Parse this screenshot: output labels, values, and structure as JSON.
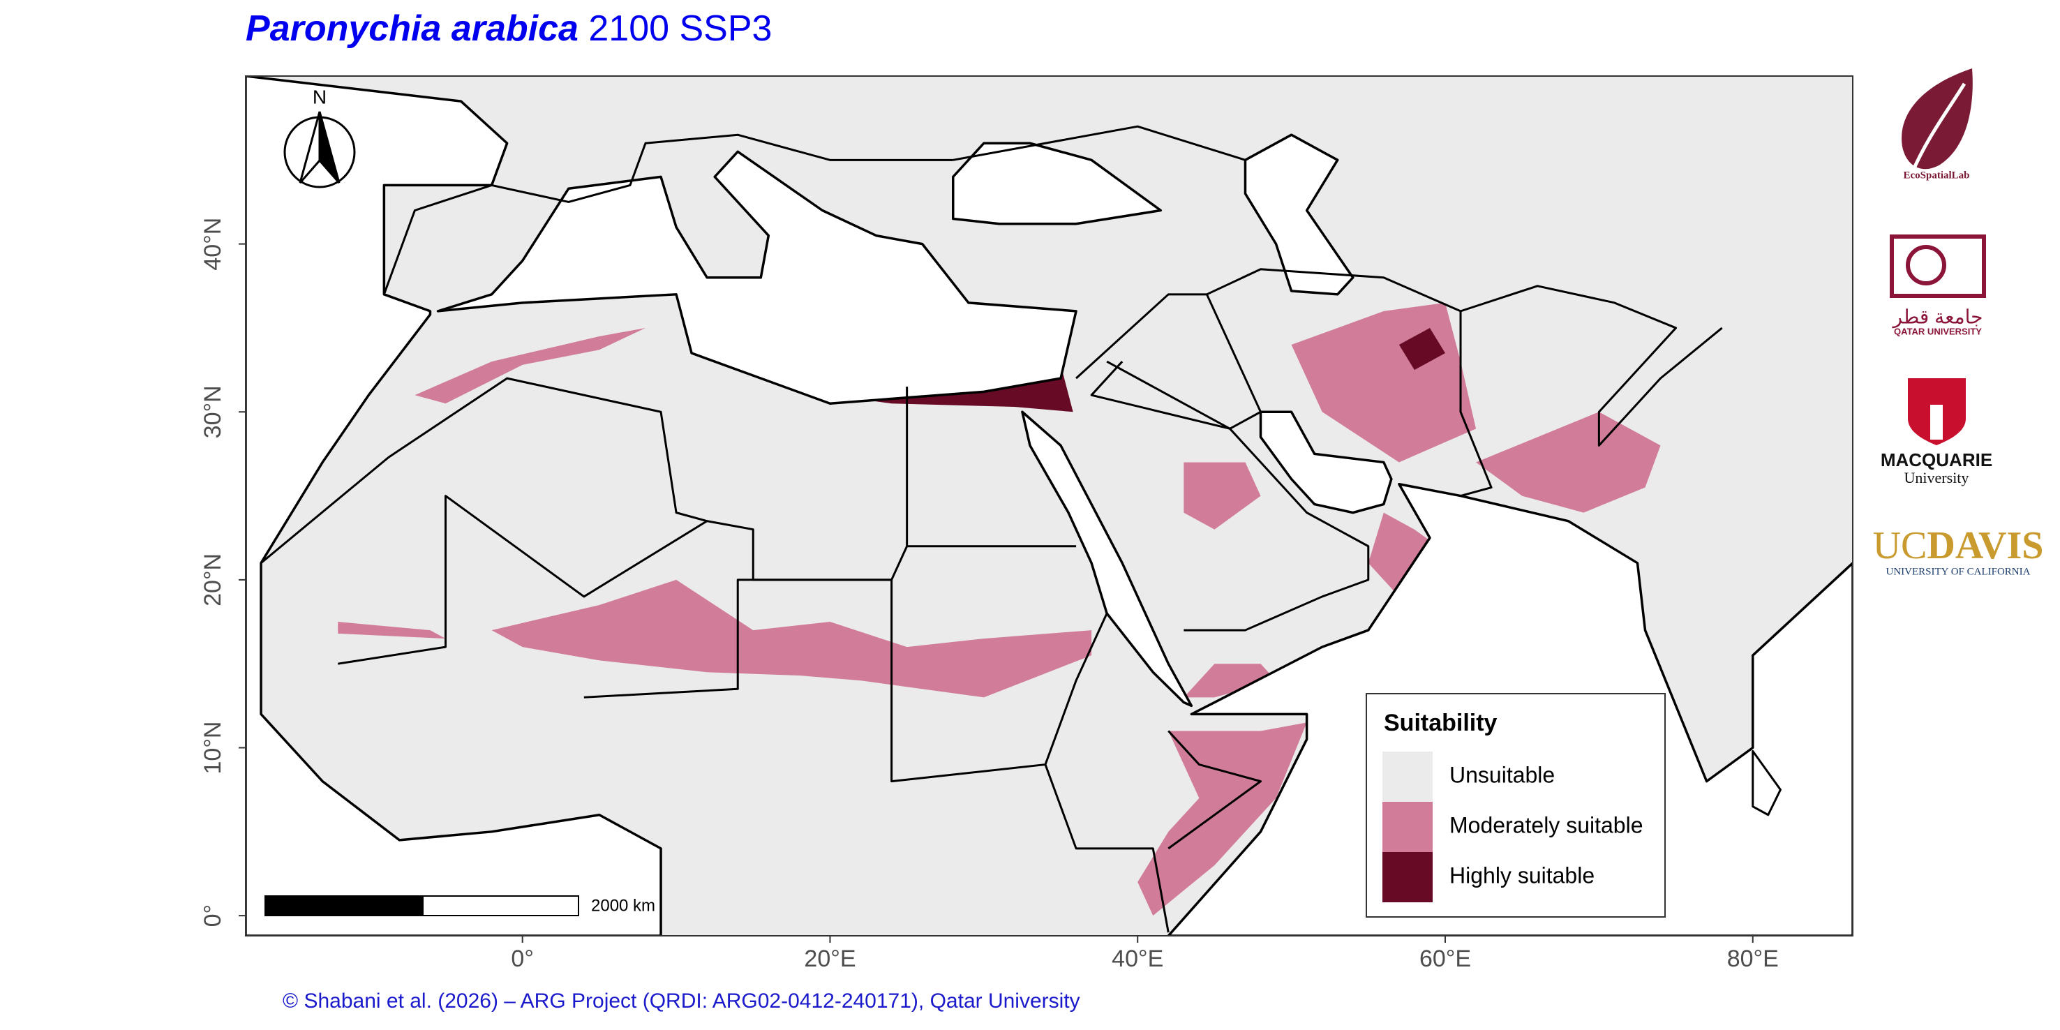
{
  "title": {
    "species": "Paronychia arabica",
    "scenario": "2100 SSP3"
  },
  "map": {
    "xlim": [
      -18,
      86.5
    ],
    "ylim": [
      -1.2,
      50
    ],
    "xticks": [
      {
        "value": 0,
        "label": "0°"
      },
      {
        "value": 20,
        "label": "20°E"
      },
      {
        "value": 40,
        "label": "40°E"
      },
      {
        "value": 60,
        "label": "60°E"
      },
      {
        "value": 80,
        "label": "80°E"
      }
    ],
    "yticks": [
      {
        "value": 0,
        "label": "0°"
      },
      {
        "value": 10,
        "label": "10°N"
      },
      {
        "value": 20,
        "label": "20°N"
      },
      {
        "value": 30,
        "label": "30°N"
      },
      {
        "value": 40,
        "label": "40°N"
      }
    ]
  },
  "north_arrow": "N",
  "scale_bar": "2000 km",
  "legend": {
    "title": "Suitability",
    "items": [
      {
        "label": "Unsuitable",
        "color": "#ebebeb"
      },
      {
        "label": "Moderately suitable",
        "color": "#d17d99"
      },
      {
        "label": "Highly suitable",
        "color": "#670a26"
      }
    ]
  },
  "logos": {
    "ecospatial": "EcoSpatialLab",
    "qatar_arabic": "جامعة قطر",
    "qatar": "QATAR UNIVERSITY",
    "macquarie": "MACQUARIE",
    "macquarie_sub": "University",
    "ucdavis_uc": "UC",
    "ucdavis_davis": "DAVIS",
    "ucdavis_sub": "UNIVERSITY OF CALIFORNIA"
  },
  "credit": "© Shabani et al. (2026) – ARG Project (QRDI: ARG02-0412-240171), Qatar University"
}
